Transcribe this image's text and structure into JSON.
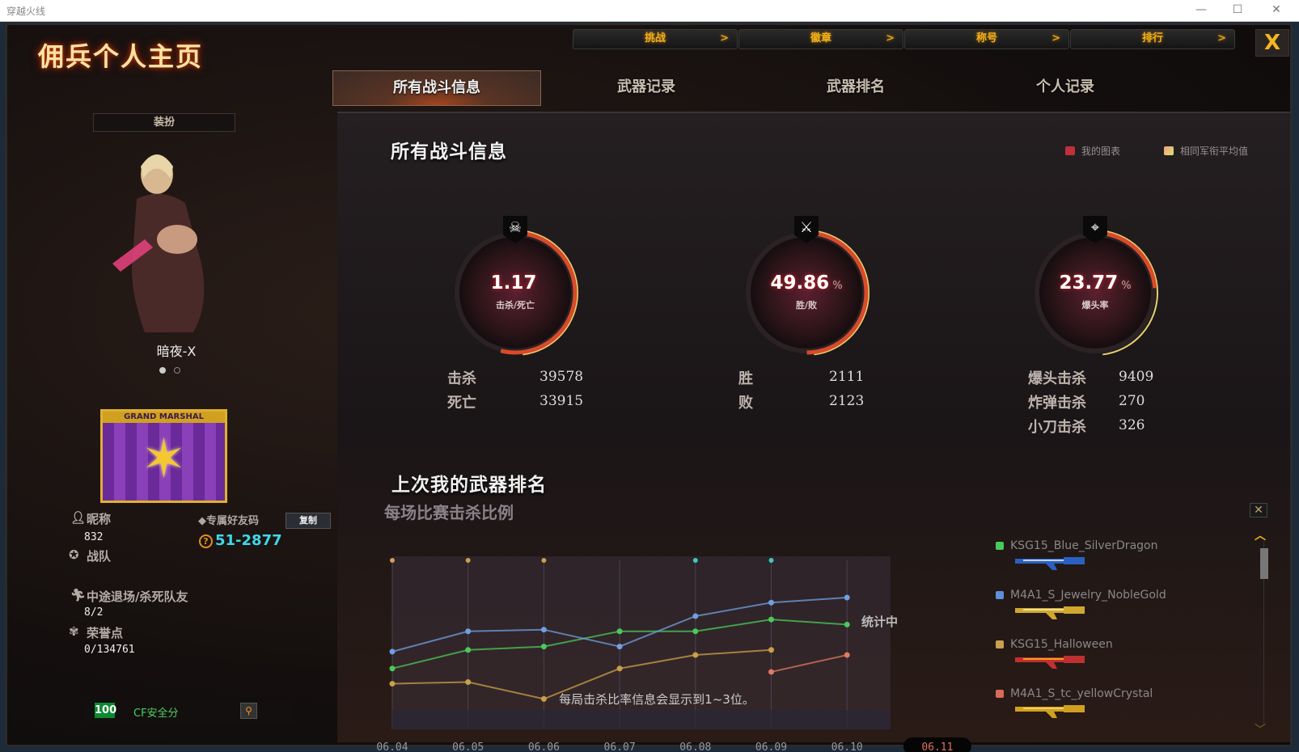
{
  "window": {
    "title": "穿越火线",
    "minimize": "—",
    "maximize": "☐",
    "close": "✕"
  },
  "header": {
    "title": "佣兵个人主页",
    "close_label": "X",
    "nav": [
      {
        "label": "挑战"
      },
      {
        "label": "徽章"
      },
      {
        "label": "称号"
      },
      {
        "label": "排行"
      }
    ],
    "nav_arrow": ">"
  },
  "tabs": [
    {
      "label": "所有战斗信息",
      "active": true
    },
    {
      "label": "武器记录"
    },
    {
      "label": "武器排名"
    },
    {
      "label": "个人记录"
    }
  ],
  "profile": {
    "dress_label": "装扮",
    "character_name": "暗夜-X",
    "badge_text": "GRAND MARSHAL",
    "nickname_label": "昵称",
    "nickname": "832",
    "friend_code_label": "专属好友码",
    "copy_label": "复制",
    "friend_code": "51-2877",
    "clan_label": "战队",
    "quit_label": "中途退场/杀死队友",
    "quit_value": "8/2",
    "honor_label": "荣誉点",
    "honor_value": "0/134761",
    "security_score": "100",
    "security_label": "CF安全分"
  },
  "battle": {
    "title": "所有战斗信息",
    "legend": [
      {
        "label": "我的图表",
        "color": "#c0303a"
      },
      {
        "label": "相同军衔平均值",
        "color": "#e8c070"
      }
    ],
    "rings": [
      {
        "icon": "skull-icon",
        "glyph": "☠",
        "value": "1.17",
        "unit": "",
        "label": "击杀/死亡",
        "fill": 0.5386,
        "stats": [
          {
            "label": "击杀",
            "value": "39578"
          },
          {
            "label": "死亡",
            "value": "33915"
          }
        ]
      },
      {
        "icon": "crossed-guns-icon",
        "glyph": "⚔",
        "value": "49.86",
        "unit": "%",
        "label": "胜/败",
        "fill": 0.4986,
        "stats": [
          {
            "label": "胜",
            "value": "2111"
          },
          {
            "label": "败",
            "value": "2123"
          }
        ]
      },
      {
        "icon": "crosshair-gun-icon",
        "glyph": "⌖",
        "value": "23.77",
        "unit": "%",
        "label": "爆头率",
        "fill": 0.2377,
        "stats": [
          {
            "label": "爆头击杀",
            "value": "9409"
          },
          {
            "label": "炸弹击杀",
            "value": "270"
          },
          {
            "label": "小刀击杀",
            "value": "326"
          }
        ]
      }
    ]
  },
  "weapon_rank": {
    "title": "上次我的武器排名",
    "subtitle": "每场比赛击杀比例",
    "pending": "统计中",
    "caption": "每局击杀比率信息会显示到1~3位。",
    "close": "✕",
    "weapons": [
      {
        "name": "KSG15_Blue_SilverDragon",
        "color": "#4cc85a"
      },
      {
        "name": "M4A1_S_Jewelry_NobleGold",
        "color": "#5f8fd8"
      },
      {
        "name": "KSG15_Halloween",
        "color": "#caa050"
      },
      {
        "name": "M4A1_S_tc_yellowCrystal",
        "color": "#d86a58"
      }
    ]
  },
  "chart_data": {
    "type": "line",
    "title": "每场比赛击杀比例",
    "xlabel": "",
    "ylabel": "",
    "categories": [
      "06.04",
      "06.05",
      "06.06",
      "06.07",
      "06.08",
      "06.09",
      "06.10",
      "06.11"
    ],
    "selected": "06.11",
    "ylim": [
      0,
      100
    ],
    "grid": "vertical",
    "series": [
      {
        "name": "KSG15_Blue_SilverDragon",
        "color": "#4cc85a",
        "values": [
          36,
          47,
          49,
          58,
          58,
          65,
          62,
          null
        ]
      },
      {
        "name": "M4A1_S_Jewelry_NobleGold",
        "color": "#6f9fe0",
        "values": [
          46,
          58,
          59,
          49,
          67,
          75,
          78,
          null
        ]
      },
      {
        "name": "KSG15_Halloween",
        "color": "#c9a048",
        "values": [
          27,
          28,
          18,
          36,
          44,
          47,
          null,
          null
        ]
      },
      {
        "name": "M4A1_S_tc_yellowCrystal",
        "color": "#e07a60",
        "values": [
          null,
          null,
          null,
          null,
          null,
          34,
          44,
          null
        ]
      }
    ],
    "top_markers": [
      "#d89a60",
      "#c9a048",
      "#c9a048",
      null,
      "#40c8b8",
      "#40c8b8",
      null,
      null
    ]
  }
}
